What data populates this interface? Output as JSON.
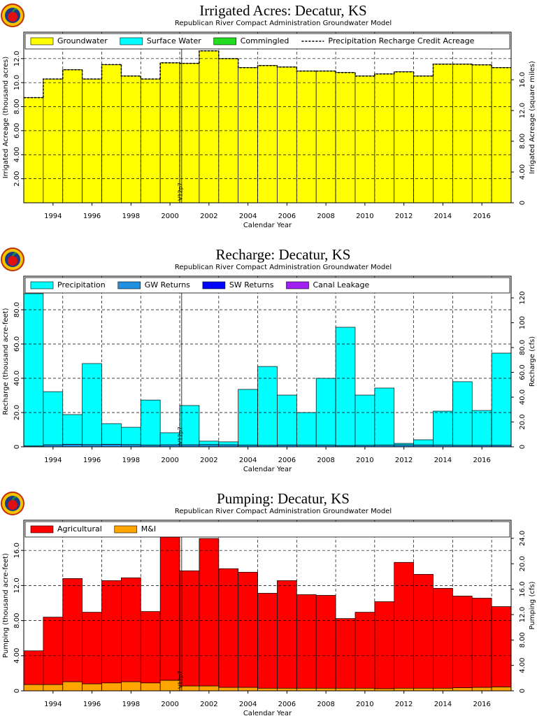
{
  "chart_data": [
    {
      "type": "bar",
      "stacked": true,
      "title": "Irrigated Acres: Decatur, KS",
      "subtitle": "Republican River Compact Administration Groundwater Model",
      "xlabel": "Calendar Year",
      "ylabel": "Irrigated Acreage (thousand acres)",
      "y2label": "Irrigated Acreage (square miles)",
      "x": [
        1993,
        1994,
        1995,
        1996,
        1997,
        1998,
        1999,
        2000,
        2001,
        2002,
        2003,
        2004,
        2005,
        2006,
        2007,
        2008,
        2009,
        2010,
        2011,
        2012,
        2013,
        2014,
        2015,
        2016,
        2017
      ],
      "series": [
        {
          "name": "Groundwater",
          "color": "#ffff00",
          "values": [
            8.75,
            10.3,
            11.07,
            10.3,
            11.5,
            10.55,
            10.3,
            11.65,
            11.6,
            12.64,
            12.0,
            11.25,
            11.42,
            11.3,
            10.96,
            10.96,
            10.84,
            10.55,
            10.72,
            10.9,
            10.55,
            11.54,
            11.54,
            11.48,
            11.25
          ]
        },
        {
          "name": "Surface Water",
          "color": "#00ffff",
          "values": [
            0,
            0,
            0,
            0,
            0,
            0,
            0,
            0,
            0,
            0,
            0,
            0,
            0,
            0,
            0,
            0,
            0,
            0,
            0,
            0,
            0,
            0,
            0,
            0,
            0
          ]
        },
        {
          "name": "Commingled",
          "color": "#22dd22",
          "values": [
            0,
            0,
            0,
            0,
            0,
            0,
            0,
            0,
            0,
            0,
            0,
            0,
            0,
            0,
            0,
            0,
            0,
            0,
            0,
            0,
            0,
            0,
            0,
            0,
            0
          ]
        },
        {
          "name": "Precipitation Recharge Credit Acreage",
          "color": "#000000",
          "style": "dashed-step",
          "values": [
            8.75,
            10.3,
            11.07,
            10.3,
            11.5,
            10.55,
            10.3,
            11.65,
            11.6,
            12.64,
            12.0,
            11.25,
            11.42,
            11.3,
            10.96,
            10.96,
            10.84,
            10.55,
            10.72,
            10.9,
            10.55,
            11.54,
            11.54,
            11.48,
            11.25
          ]
        }
      ],
      "xlim": [
        1992.5,
        2017.5
      ],
      "xticks": [
        1994,
        1996,
        1998,
        2000,
        2002,
        2004,
        2006,
        2008,
        2010,
        2012,
        2014,
        2016
      ],
      "ylim": [
        0,
        14.2
      ],
      "yticks": [
        {
          "value": 2,
          "label": "2.00"
        },
        {
          "value": 4,
          "label": "4.00"
        },
        {
          "value": 6,
          "label": "6.00"
        },
        {
          "value": 8,
          "label": "8.00"
        },
        {
          "value": 10,
          "label": "10.0"
        },
        {
          "value": 12,
          "label": "12.0"
        }
      ],
      "y2lim": [
        0,
        22.19
      ],
      "y2ticks": [
        0,
        {
          "value": 4,
          "label": "4.00"
        },
        {
          "value": 8,
          "label": "8.00"
        },
        {
          "value": 12,
          "label": "12.0"
        },
        {
          "value": 16,
          "label": "16.0"
        }
      ],
      "grid": true,
      "legend": "top",
      "annotations": [
        {
          "text": "V12p7",
          "x": 2000.6
        }
      ]
    },
    {
      "type": "bar",
      "stacked": true,
      "title": "Recharge: Decatur, KS",
      "subtitle": "Republican River Compact Administration Groundwater Model",
      "xlabel": "Calendar Year",
      "ylabel": "Recharge (thousand acre-feet)",
      "y2label": "Recharge (cfs)",
      "x": [
        1993,
        1994,
        1995,
        1996,
        1997,
        1998,
        1999,
        2000,
        2001,
        2002,
        2003,
        2004,
        2005,
        2006,
        2007,
        2008,
        2009,
        2010,
        2011,
        2012,
        2013,
        2014,
        2015,
        2016,
        2017
      ],
      "series": [
        {
          "name": "GW Returns",
          "color": "#2090e0",
          "values": [
            0.5,
            1.2,
            1.5,
            1.3,
            1.5,
            1.3,
            1.0,
            1.2,
            1.2,
            1.3,
            1.2,
            1.0,
            0.9,
            1.1,
            1.0,
            1.0,
            0.8,
            0.9,
            1.0,
            1.2,
            1.1,
            1.0,
            0.9,
            0.9,
            0.9
          ]
        },
        {
          "name": "SW Returns",
          "color": "#0000ff",
          "values": [
            0,
            0,
            0,
            0,
            0,
            0,
            0,
            0,
            0,
            0,
            0,
            0,
            0,
            0,
            0,
            0,
            0,
            0,
            0,
            0,
            0,
            0,
            0,
            0,
            0
          ]
        },
        {
          "name": "Canal Leakage",
          "color": "#a020f0",
          "values": [
            0,
            0,
            0,
            0,
            0,
            0,
            0,
            0,
            0,
            0,
            0,
            0,
            0,
            0,
            0,
            0,
            0,
            0,
            0,
            0,
            0,
            0,
            0,
            0,
            0
          ]
        },
        {
          "name": "Precipitation",
          "color": "#00ffff",
          "values": [
            88.9,
            31.0,
            17.3,
            47.3,
            12.0,
            10.1,
            26.3,
            7.0,
            22.9,
            2.0,
            1.7,
            32.5,
            46.0,
            29.1,
            19.0,
            39.0,
            69.0,
            29.3,
            33.3,
            0.8,
            3.0,
            19.8,
            37.1,
            20.3,
            53.8
          ]
        }
      ],
      "legend_order": [
        3,
        0,
        1,
        2
      ],
      "xlim": [
        1992.5,
        2017.5
      ],
      "xticks": [
        1994,
        1996,
        1998,
        2000,
        2002,
        2004,
        2006,
        2008,
        2010,
        2012,
        2014,
        2016
      ],
      "ylim": [
        0,
        99.6
      ],
      "yticks": [
        0,
        {
          "value": 20,
          "label": "20.0"
        },
        {
          "value": 40,
          "label": "40.0"
        },
        {
          "value": 60,
          "label": "60.0"
        },
        {
          "value": 80,
          "label": "80.0"
        }
      ],
      "y2lim": [
        0,
        137.5
      ],
      "y2ticks": [
        0,
        {
          "value": 20,
          "label": "20.0"
        },
        {
          "value": 40,
          "label": "40.0"
        },
        {
          "value": 60,
          "label": "60.0"
        },
        {
          "value": 80,
          "label": "80.0"
        },
        100,
        120
      ],
      "grid": true,
      "legend": "top",
      "annotations": [
        {
          "text": "V12p7",
          "x": 2000.6
        }
      ]
    },
    {
      "type": "bar",
      "stacked": true,
      "title": "Pumping: Decatur, KS",
      "subtitle": "Republican River Compact Administration Groundwater Model",
      "xlabel": "Calendar Year",
      "ylabel": "Pumping (thousand acre-feet)",
      "y2label": "Pumping (cfs)",
      "x": [
        1993,
        1994,
        1995,
        1996,
        1997,
        1998,
        1999,
        2000,
        2001,
        2002,
        2003,
        2004,
        2005,
        2006,
        2007,
        2008,
        2009,
        2010,
        2011,
        2012,
        2013,
        2014,
        2015,
        2016,
        2017
      ],
      "series": [
        {
          "name": "M&I",
          "color": "#ffa500",
          "values": [
            0.72,
            0.72,
            1.04,
            0.8,
            0.9,
            1.04,
            0.9,
            1.2,
            0.56,
            0.56,
            0.4,
            0.4,
            0.3,
            0.3,
            0.3,
            0.3,
            0.3,
            0.3,
            0.25,
            0.3,
            0.3,
            0.3,
            0.35,
            0.4,
            0.45
          ]
        },
        {
          "name": "Agricultural",
          "color": "#ff0000",
          "values": [
            3.84,
            7.68,
            11.76,
            8.16,
            11.66,
            11.84,
            8.14,
            16.32,
            13.12,
            16.8,
            13.52,
            13.12,
            10.82,
            12.26,
            10.66,
            10.58,
            7.94,
            8.66,
            9.91,
            14.34,
            12.98,
            11.38,
            10.45,
            10.16,
            9.15
          ]
        }
      ],
      "legend_order": [
        1,
        0
      ],
      "xlim": [
        1992.5,
        2017.5
      ],
      "xticks": [
        1994,
        1996,
        1998,
        2000,
        2002,
        2004,
        2006,
        2008,
        2010,
        2012,
        2014,
        2016
      ],
      "ylim": [
        0,
        19.44
      ],
      "yticks": [
        0,
        {
          "value": 4,
          "label": "4.00"
        },
        {
          "value": 8,
          "label": "8.00"
        },
        {
          "value": 12,
          "label": "12.0"
        },
        {
          "value": 16,
          "label": "16.0"
        }
      ],
      "y2lim": [
        0,
        26.85
      ],
      "y2ticks": [
        0,
        {
          "value": 4,
          "label": "4.00"
        },
        {
          "value": 8,
          "label": "8.00"
        },
        {
          "value": 12,
          "label": "12.0"
        },
        {
          "value": 16,
          "label": "16.0"
        },
        {
          "value": 20,
          "label": "20.0"
        },
        {
          "value": 24,
          "label": "24.0"
        }
      ],
      "grid": true,
      "legend": "top",
      "annotations": [
        {
          "text": "V12p7",
          "x": 2000.6
        }
      ]
    }
  ]
}
